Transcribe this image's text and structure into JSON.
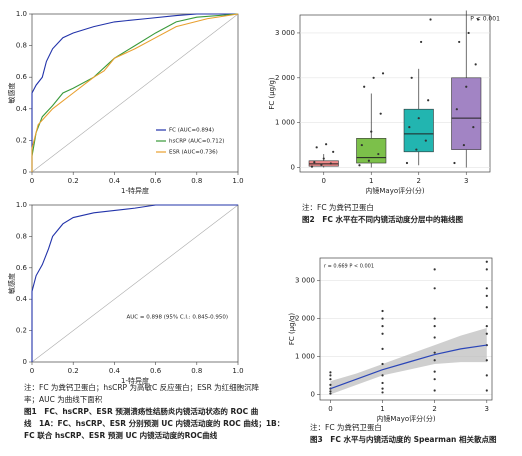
{
  "chart_data": [
    {
      "type": "line",
      "xlabel": "1-特异度",
      "ylabel": "敏感度",
      "xlim": [
        0,
        1
      ],
      "ylim": [
        0,
        1
      ],
      "xticks": [
        0,
        0.2,
        0.4,
        0.6,
        0.8,
        {
          "value": 1,
          "label": "1.0"
        }
      ],
      "yticks": [
        0,
        0.2,
        0.4,
        0.6,
        0.8,
        {
          "value": 1,
          "label": "1.0"
        }
      ],
      "legend": "lower right",
      "series": [
        {
          "name": "FC (AUC=0.894)",
          "color": "#2233aa",
          "x": [
            0,
            0,
            0.02,
            0.05,
            0.07,
            0.1,
            0.15,
            0.2,
            0.3,
            0.4,
            0.55,
            0.7,
            0.8,
            1
          ],
          "values": [
            0,
            0.5,
            0.55,
            0.6,
            0.7,
            0.78,
            0.85,
            0.88,
            0.92,
            0.95,
            0.97,
            0.99,
            1,
            1
          ]
        },
        {
          "name": "hsCRP (AUC=0.712)",
          "color": "#3a9a3a",
          "x": [
            0,
            0,
            0.02,
            0.05,
            0.1,
            0.15,
            0.2,
            0.3,
            0.4,
            0.5,
            0.6,
            0.7,
            0.8,
            1
          ],
          "values": [
            0,
            0.1,
            0.25,
            0.35,
            0.42,
            0.5,
            0.53,
            0.6,
            0.72,
            0.8,
            0.88,
            0.95,
            0.98,
            1
          ]
        },
        {
          "name": "ESR (AUC=0.736)",
          "color": "#e8a030",
          "x": [
            0,
            0,
            0.03,
            0.1,
            0.2,
            0.25,
            0.3,
            0.35,
            0.4,
            0.5,
            0.6,
            0.7,
            0.85,
            1
          ],
          "values": [
            0,
            0.15,
            0.3,
            0.4,
            0.5,
            0.55,
            0.6,
            0.64,
            0.72,
            0.78,
            0.85,
            0.92,
            0.97,
            1
          ]
        }
      ]
    },
    {
      "type": "line",
      "xlabel": "1-特异度",
      "ylabel": "敏感度",
      "xlim": [
        0,
        1
      ],
      "ylim": [
        0,
        1
      ],
      "xticks": [
        0,
        0.2,
        0.4,
        0.6,
        0.8,
        {
          "value": 1,
          "label": "1.0"
        }
      ],
      "yticks": [
        0,
        0.2,
        0.4,
        0.6,
        0.8,
        {
          "value": 1,
          "label": "1.0"
        }
      ],
      "annotation": "AUC = 0.898 (95% C.I.: 0.845-0.950)",
      "series": [
        {
          "color": "#2233aa",
          "x": [
            0,
            0,
            0.02,
            0.05,
            0.08,
            0.1,
            0.15,
            0.2,
            0.3,
            0.5,
            0.6,
            1
          ],
          "values": [
            0,
            0.45,
            0.55,
            0.62,
            0.72,
            0.8,
            0.88,
            0.92,
            0.95,
            0.98,
            1,
            1
          ]
        }
      ]
    },
    {
      "type": "box",
      "xlabel": "内镜Mayo评分(分)",
      "ylabel": "FC (μg/g)",
      "annotation": "P < 0.001",
      "categories": [
        "0",
        "1",
        "2",
        "3"
      ],
      "ylim": [
        -100,
        3400
      ],
      "yticks": [
        0,
        {
          "value": 1000,
          "label": "1 000"
        },
        {
          "value": 2000,
          "label": "2 000"
        },
        {
          "value": 3000,
          "label": "3 000"
        }
      ],
      "boxes": [
        {
          "low": 0,
          "q1": 30,
          "median": 80,
          "q3": 150,
          "high": 300,
          "color": "#ee8a8a"
        },
        {
          "low": 0,
          "q1": 100,
          "median": 220,
          "q3": 650,
          "high": 1650,
          "color": "#7cc04a"
        },
        {
          "low": 50,
          "q1": 350,
          "median": 750,
          "q3": 1300,
          "high": 2200,
          "color": "#22b5b0"
        },
        {
          "low": 0,
          "q1": 400,
          "median": 1100,
          "q3": 2000,
          "high": 3500,
          "color": "#a284c4"
        }
      ],
      "points": [
        [
          20,
          60,
          90,
          120,
          200,
          350,
          450,
          520
        ],
        [
          50,
          150,
          300,
          500,
          800,
          1200,
          1800,
          2000,
          2100
        ],
        [
          100,
          400,
          600,
          900,
          1100,
          1500,
          2000,
          2800,
          3300
        ],
        [
          100,
          500,
          900,
          1300,
          1800,
          2300,
          2800,
          3000,
          3300
        ]
      ]
    },
    {
      "type": "scatter",
      "xlabel": "内镜Mayo评分(分)",
      "ylabel": "FC (μg/g)",
      "annotation": "r = 0.669  P < 0.001",
      "color": "#333",
      "xlim": [
        -0.2,
        3.1
      ],
      "ylim": [
        -150,
        3600
      ],
      "xticks": [
        0,
        1,
        2,
        3
      ],
      "yticks": [
        0,
        {
          "value": 1000,
          "label": "1 000"
        },
        {
          "value": 2000,
          "label": "2 000"
        },
        {
          "value": 3000,
          "label": "3 000"
        }
      ],
      "x": [
        0,
        0,
        0,
        0,
        0,
        0,
        0,
        1,
        1,
        1,
        1,
        1,
        1,
        1,
        1,
        1,
        1,
        2,
        2,
        2,
        2,
        2,
        2,
        2,
        2,
        2,
        2,
        3,
        3,
        3,
        3,
        3,
        3,
        3,
        3,
        3,
        3,
        3
      ],
      "values": [
        20,
        80,
        150,
        250,
        400,
        500,
        580,
        50,
        150,
        300,
        500,
        800,
        1200,
        1600,
        1800,
        2000,
        2200,
        100,
        400,
        600,
        900,
        1100,
        1500,
        1800,
        2000,
        2800,
        3300,
        100,
        500,
        900,
        1300,
        1600,
        1800,
        2300,
        2600,
        2800,
        3300,
        3500
      ],
      "smooth": {
        "x": [
          0,
          0.5,
          1,
          1.5,
          2,
          2.5,
          3
        ],
        "values": [
          150,
          400,
          650,
          850,
          1050,
          1200,
          1300
        ],
        "lower": [
          0,
          250,
          500,
          650,
          800,
          850,
          850
        ],
        "upper": [
          350,
          550,
          800,
          1050,
          1300,
          1550,
          1750
        ],
        "color": "#2a45b8"
      }
    }
  ],
  "figure1": {
    "note": [
      "注：FC 为粪钙卫蛋白；hsCRP 为高敏C 反应蛋白；ESR 为红细胞沉降",
      "率；AUC 为曲线下面积"
    ],
    "caption": [
      "图1　FC、hsCRP、ESR 预测溃疡性结肠炎内镜活动状态的 ROC 曲",
      "线　1A：FC、hsCRP、ESR 分别预测 UC 内镜活动度的 ROC 曲线；1B：",
      "FC 联合 hsCRP、ESR 预测 UC 内镜活动度的ROC曲线"
    ]
  },
  "figure2": {
    "note": [
      "注：FC 为粪钙卫蛋白"
    ],
    "caption": [
      "图2　FC 水平在不同内镜活动度分层中的箱线图"
    ]
  },
  "figure3": {
    "note": [
      "注：FC 为粪钙卫蛋白"
    ],
    "caption": [
      "图3　FC 水平与内镜活动度的 Spearman 相关散点图"
    ]
  }
}
